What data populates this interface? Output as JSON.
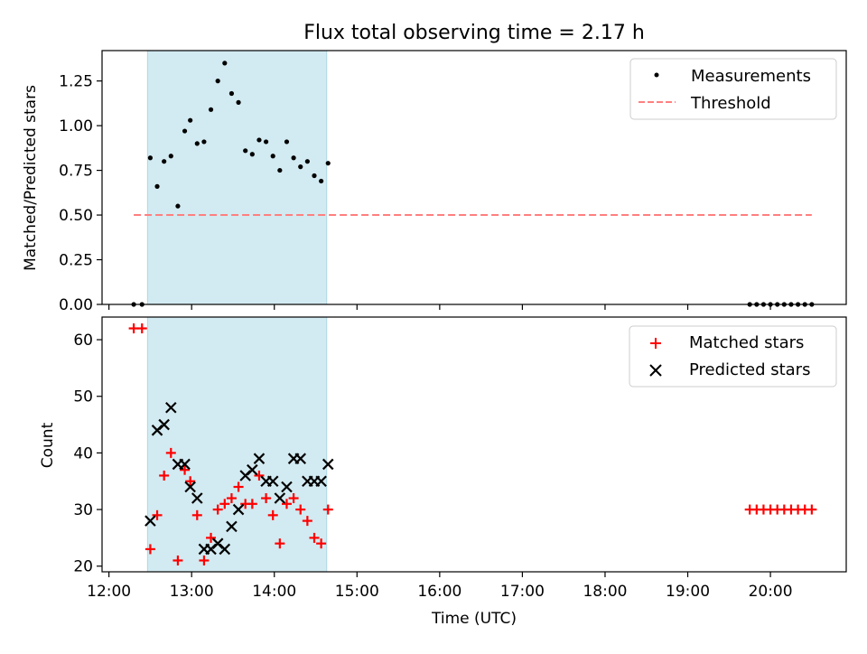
{
  "title": "Flux total observing time = 2.17 h",
  "colors": {
    "shade": "#add8e6",
    "measurement": "#000000",
    "threshold": "#ff7f7f",
    "matched": "#ff0000",
    "predicted": "#000000"
  },
  "chart_data": [
    {
      "type": "scatter",
      "panel": "top",
      "ylabel": "Matched/Predicted stars",
      "ylim": [
        0,
        1.42
      ],
      "yticks": [
        "0.00",
        "0.25",
        "0.50",
        "0.75",
        "1.00",
        "1.25"
      ],
      "legend_position": "top-right",
      "shaded_interval": [
        "12:28",
        "14:38"
      ],
      "series": [
        {
          "name": "Measurements",
          "kind": "points",
          "points": [
            [
              "12:18",
              0.0
            ],
            [
              "12:24",
              0.0
            ],
            [
              "12:30",
              0.82
            ],
            [
              "12:35",
              0.66
            ],
            [
              "12:40",
              0.8
            ],
            [
              "12:45",
              0.83
            ],
            [
              "12:50",
              0.55
            ],
            [
              "12:55",
              0.97
            ],
            [
              "12:59",
              1.03
            ],
            [
              "13:04",
              0.9
            ],
            [
              "13:09",
              0.91
            ],
            [
              "13:14",
              1.09
            ],
            [
              "13:19",
              1.25
            ],
            [
              "13:24",
              1.35
            ],
            [
              "13:29",
              1.18
            ],
            [
              "13:34",
              1.13
            ],
            [
              "13:39",
              0.86
            ],
            [
              "13:44",
              0.84
            ],
            [
              "13:49",
              0.92
            ],
            [
              "13:54",
              0.91
            ],
            [
              "13:59",
              0.83
            ],
            [
              "14:04",
              0.75
            ],
            [
              "14:09",
              0.91
            ],
            [
              "14:14",
              0.82
            ],
            [
              "14:19",
              0.77
            ],
            [
              "14:24",
              0.8
            ],
            [
              "14:29",
              0.72
            ],
            [
              "14:34",
              0.69
            ],
            [
              "14:39",
              0.79
            ],
            [
              "19:45",
              0.0
            ],
            [
              "19:50",
              0.0
            ],
            [
              "19:55",
              0.0
            ],
            [
              "20:00",
              0.0
            ],
            [
              "20:05",
              0.0
            ],
            [
              "20:10",
              0.0
            ],
            [
              "20:15",
              0.0
            ],
            [
              "20:20",
              0.0
            ],
            [
              "20:25",
              0.0
            ],
            [
              "20:30",
              0.0
            ]
          ]
        },
        {
          "name": "Threshold",
          "kind": "dashed-line",
          "points": [
            [
              "12:18",
              0.5
            ],
            [
              "20:30",
              0.5
            ]
          ]
        }
      ]
    },
    {
      "type": "scatter",
      "panel": "bottom",
      "xlabel": "Time (UTC)",
      "ylabel": "Count",
      "ylim": [
        19,
        64
      ],
      "yticks": [
        "20",
        "30",
        "40",
        "50",
        "60"
      ],
      "xlim": [
        "11:55",
        "20:55"
      ],
      "xticks": [
        "12:00",
        "13:00",
        "14:00",
        "15:00",
        "16:00",
        "17:00",
        "18:00",
        "19:00",
        "20:00"
      ],
      "legend_position": "top-right",
      "shaded_interval": [
        "12:28",
        "14:38"
      ],
      "series": [
        {
          "name": "Matched stars",
          "marker": "+",
          "points": [
            [
              "12:18",
              62
            ],
            [
              "12:24",
              62
            ],
            [
              "12:30",
              23
            ],
            [
              "12:35",
              29
            ],
            [
              "12:40",
              36
            ],
            [
              "12:45",
              40
            ],
            [
              "12:50",
              21
            ],
            [
              "12:55",
              37
            ],
            [
              "12:59",
              35
            ],
            [
              "13:04",
              29
            ],
            [
              "13:09",
              21
            ],
            [
              "13:14",
              25
            ],
            [
              "13:19",
              30
            ],
            [
              "13:24",
              31
            ],
            [
              "13:29",
              32
            ],
            [
              "13:34",
              34
            ],
            [
              "13:39",
              31
            ],
            [
              "13:44",
              31
            ],
            [
              "13:49",
              36
            ],
            [
              "13:54",
              32
            ],
            [
              "13:59",
              29
            ],
            [
              "14:04",
              24
            ],
            [
              "14:09",
              31
            ],
            [
              "14:14",
              32
            ],
            [
              "14:19",
              30
            ],
            [
              "14:24",
              28
            ],
            [
              "14:29",
              25
            ],
            [
              "14:34",
              24
            ],
            [
              "14:39",
              30
            ],
            [
              "19:45",
              30
            ],
            [
              "19:50",
              30
            ],
            [
              "19:55",
              30
            ],
            [
              "20:00",
              30
            ],
            [
              "20:05",
              30
            ],
            [
              "20:10",
              30
            ],
            [
              "20:15",
              30
            ],
            [
              "20:20",
              30
            ],
            [
              "20:25",
              30
            ],
            [
              "20:30",
              30
            ]
          ]
        },
        {
          "name": "Predicted stars",
          "marker": "x",
          "points": [
            [
              "12:30",
              28
            ],
            [
              "12:35",
              44
            ],
            [
              "12:40",
              45
            ],
            [
              "12:45",
              48
            ],
            [
              "12:50",
              38
            ],
            [
              "12:55",
              38
            ],
            [
              "12:59",
              34
            ],
            [
              "13:04",
              32
            ],
            [
              "13:09",
              23
            ],
            [
              "13:14",
              23
            ],
            [
              "13:19",
              24
            ],
            [
              "13:24",
              23
            ],
            [
              "13:29",
              27
            ],
            [
              "13:34",
              30
            ],
            [
              "13:39",
              36
            ],
            [
              "13:44",
              37
            ],
            [
              "13:49",
              39
            ],
            [
              "13:54",
              35
            ],
            [
              "13:59",
              35
            ],
            [
              "14:04",
              32
            ],
            [
              "14:09",
              34
            ],
            [
              "14:14",
              39
            ],
            [
              "14:19",
              39
            ],
            [
              "14:24",
              35
            ],
            [
              "14:29",
              35
            ],
            [
              "14:34",
              35
            ],
            [
              "14:39",
              38
            ]
          ]
        }
      ]
    }
  ]
}
